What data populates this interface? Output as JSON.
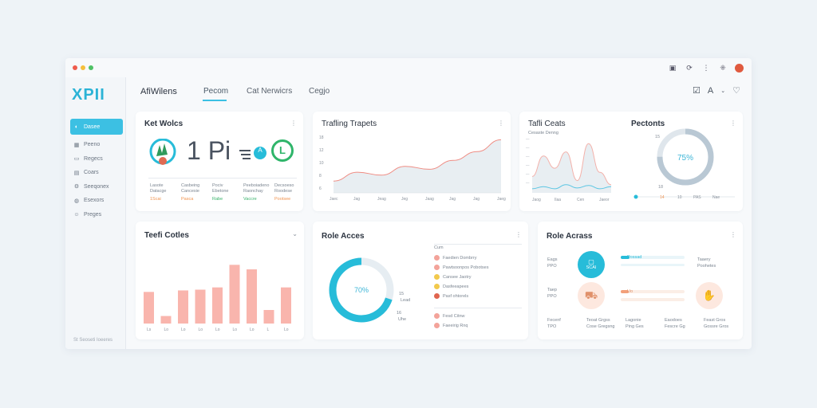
{
  "app": {
    "logo": "XPII"
  },
  "colors": {
    "accent": "#3cc0e3",
    "bar": "#f9b5ad",
    "teal": "#27bcd9"
  },
  "sidebar": {
    "items": [
      {
        "label": "Dasee",
        "icon": "drop-icon",
        "active": true
      },
      {
        "label": "Peeno",
        "icon": "grid-icon",
        "active": false
      },
      {
        "label": "Regecs",
        "icon": "folder-icon",
        "active": false
      },
      {
        "label": "Coars",
        "icon": "card-icon",
        "active": false
      },
      {
        "label": "Seeqonex",
        "icon": "settings-icon",
        "active": false
      },
      {
        "label": "Esexors",
        "icon": "globe-icon",
        "active": false
      },
      {
        "label": "Preges",
        "icon": "user-icon",
        "active": false
      }
    ],
    "footer": "St   Seoseti Ioeeres"
  },
  "tabs": [
    {
      "label": "AfiWilens"
    },
    {
      "label": "Pecom"
    },
    {
      "label": "Cat Nerwicrs"
    },
    {
      "label": "Cegjo"
    }
  ],
  "kpi": {
    "title": "Ket Wolcs",
    "big": "1 Pi",
    "badge": "A",
    "circle": "L",
    "stats": [
      {
        "label": "Lasote",
        "sub": "Datacge",
        "value": "1Scai",
        "color": "orange"
      },
      {
        "label": "Casbeing",
        "sub": "Cancesie",
        "value": "Pasca",
        "color": "orange"
      },
      {
        "label": "Pociv",
        "sub": "Ebetone",
        "value": "Rabe",
        "color": "green"
      },
      {
        "label": "Peeboiadeno",
        "sub": "Raonchay",
        "value": "Vaccre",
        "color": "green"
      },
      {
        "label": "Decsoeso",
        "sub": "Roodese",
        "value": "Pootsee",
        "color": "orange"
      }
    ]
  },
  "trends": {
    "title": "Trafling Trapets",
    "yticks": [
      "18",
      "12",
      "10",
      "8",
      "6"
    ],
    "xticks": [
      "Jaec",
      "Jag",
      "Jeag",
      "Jeg",
      "Jaag",
      "Jag",
      "Jag",
      "Jaeg"
    ]
  },
  "traffic_cats": {
    "title": "Tafli Ceats",
    "subtitle": "Cesaste Denng",
    "xticks": [
      "Jaog",
      "Ilaa",
      "Cen",
      "Jaeor"
    ]
  },
  "percents": {
    "title": "Pectonts",
    "value": "75%",
    "top_label": "15",
    "bottom_label": "18",
    "slider_ticks": [
      "14",
      "10",
      "PAS",
      "Nae"
    ]
  },
  "bar_card": {
    "title": "Teefi Cotles",
    "xticks": [
      "Ls",
      "Lo",
      "Lo",
      "Lo",
      "Lo",
      "Lo",
      "Lo",
      "L",
      "Lo"
    ]
  },
  "role_left": {
    "title": "Role Acces",
    "value": "70%",
    "label_a": "15",
    "label_b": "Lead",
    "label_c": "16",
    "label_d": "Uhe",
    "legend_header": "Cum",
    "legend": [
      {
        "label": "Faedien Dombrry",
        "color": "#f3a39a"
      },
      {
        "label": "Pawtsoonpos Pobotses",
        "color": "#f3a39a"
      },
      {
        "label": "Cansee Jaotry",
        "color": "#f2c94c"
      },
      {
        "label": "Dasfeeapees",
        "color": "#f2c94c"
      },
      {
        "label": "Pasf ohtorels",
        "color": "#e0654f"
      }
    ],
    "legend2": [
      {
        "label": "Fesd Citnw",
        "color": "#f3a39a"
      },
      {
        "label": "Faeeirig Rnq",
        "color": "#f3a39a"
      }
    ]
  },
  "role_right": {
    "title": "Role Acrass",
    "rows": [
      {
        "left1": "Eags",
        "left2": "PPO",
        "circle": "SCAI",
        "right1": "Taaery",
        "right2": "Poohetes",
        "bar_label": "Possad"
      },
      {
        "left1": "Taep",
        "left2": "PPO",
        "circle": "",
        "right1": "",
        "right2": "",
        "bar_label": "Uo"
      }
    ],
    "footer": [
      {
        "a": "Fecenf",
        "b": "TPO"
      },
      {
        "a": "Teoat Grgss",
        "b": "Cose Gregsng"
      },
      {
        "a": "Lagonie",
        "b": "Ping Ges"
      },
      {
        "a": "Eaodoes",
        "b": "Fescre Gg"
      },
      {
        "a": "Feast Gros",
        "b": "Gossre Gros"
      }
    ]
  },
  "chart_data": [
    {
      "type": "area",
      "title": "Trafling Trapets",
      "x": [
        "Jaec",
        "Jag",
        "Jeag",
        "Jeg",
        "Jaag",
        "Jag",
        "Jag",
        "Jaeg"
      ],
      "series": [
        {
          "values": [
            4,
            7,
            6,
            9,
            8,
            11,
            14,
            18
          ]
        }
      ],
      "ylim": [
        0,
        20
      ]
    },
    {
      "type": "area",
      "title": "Tafli Ceats",
      "series": [
        {
          "values": [
            4,
            9,
            6,
            10,
            3,
            12,
            5,
            2
          ]
        },
        {
          "values": [
            1,
            1.5,
            1,
            2,
            1.2,
            1.8,
            1,
            1.5
          ]
        }
      ],
      "ylim": [
        0,
        14
      ]
    },
    {
      "type": "bar",
      "title": "Teefi Cotles",
      "categories": [
        "Ls",
        "Lo",
        "Lo",
        "Lo",
        "Lo",
        "Lo",
        "Lo",
        "L",
        "Lo"
      ],
      "values": [
        42,
        10,
        44,
        45,
        48,
        78,
        72,
        18,
        48
      ],
      "ylim": [
        0,
        90
      ]
    },
    {
      "type": "pie",
      "title": "Role Acces",
      "values": [
        70,
        30
      ]
    },
    {
      "type": "pie",
      "title": "Pectonts",
      "values": [
        75,
        25
      ]
    }
  ]
}
